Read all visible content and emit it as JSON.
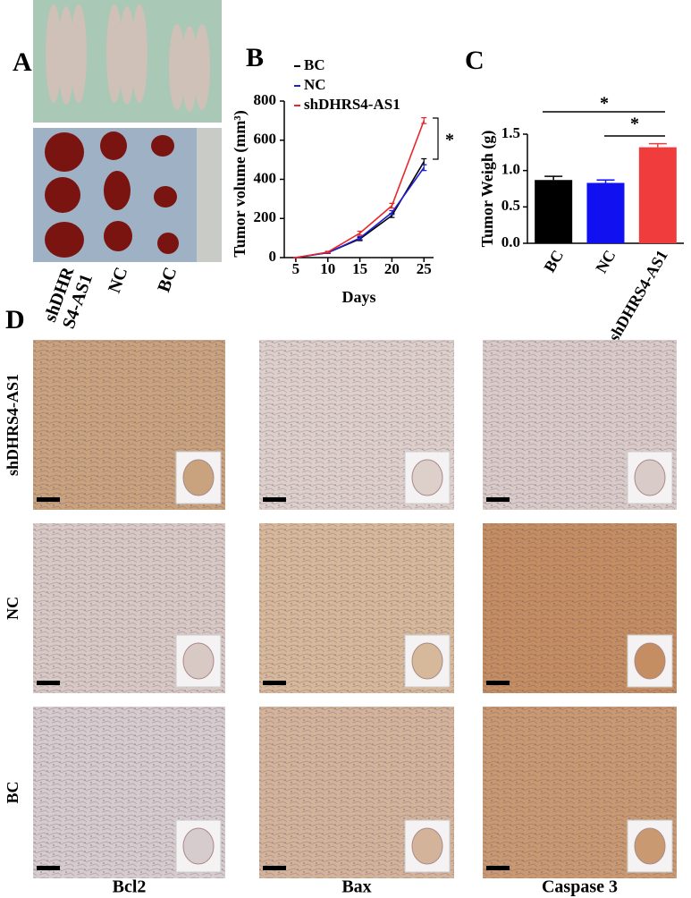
{
  "panel_labels": {
    "a": "A",
    "b": "B",
    "c": "C",
    "d": "D"
  },
  "panel_a": {
    "sample_labels": [
      [
        "shDHR",
        "S4-AS1"
      ],
      [
        "NC"
      ],
      [
        "BC"
      ]
    ]
  },
  "chart_data": [
    {
      "type": "line",
      "x_label": "Days",
      "y_label": "Tumor volume (mm³)",
      "x": [
        5,
        10,
        15,
        20,
        25
      ],
      "xlim": [
        3.2,
        26.5
      ],
      "xticks": [
        5,
        10,
        15,
        20,
        25
      ],
      "ylim": [
        0,
        800
      ],
      "yticks": [
        0,
        200,
        400,
        600,
        800
      ],
      "series": [
        {
          "name": "BC",
          "color": "#000000",
          "values": [
            0,
            25,
            95,
            215,
            490
          ],
          "errors": [
            2,
            4,
            8,
            10,
            15
          ]
        },
        {
          "name": "NC",
          "color": "#1f1fd6",
          "values": [
            0,
            25,
            100,
            230,
            460
          ],
          "errors": [
            2,
            4,
            8,
            10,
            15
          ]
        },
        {
          "name": "shDHRS4-AS1",
          "color": "#e8262a",
          "values": [
            0,
            28,
            125,
            265,
            700
          ],
          "errors": [
            2,
            4,
            10,
            12,
            15
          ]
        }
      ],
      "legend": "top-left",
      "annotations": [
        "*"
      ]
    },
    {
      "type": "bar",
      "y_label": "Tumor Weigh (g)",
      "categories": [
        "BC",
        "NC",
        "shDHRS4-AS1"
      ],
      "values": [
        0.87,
        0.83,
        1.32
      ],
      "errors": [
        0.05,
        0.04,
        0.05
      ],
      "colors": [
        "#000000",
        "#1010f0",
        "#f03c3c"
      ],
      "ylim": [
        0,
        1.5
      ],
      "yticks": [
        {
          "value": 0,
          "label": "0.0"
        },
        0.5,
        {
          "value": 1,
          "label": "1.0"
        },
        1.5
      ],
      "annotations": [
        "*",
        "*"
      ]
    }
  ],
  "panel_d": {
    "row_labels": [
      "shDHRS4-AS1",
      "NC",
      "BC"
    ],
    "column_labels": [
      "Bcl2",
      "Bax",
      "Caspase 3"
    ]
  }
}
